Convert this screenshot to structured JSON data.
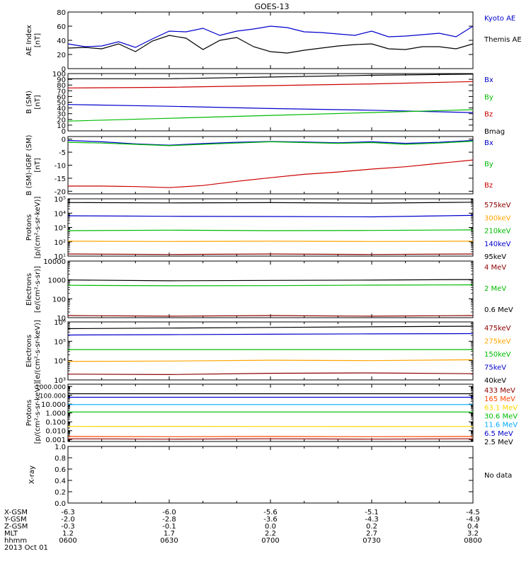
{
  "title": "GOES-13",
  "footer": {
    "rows": [
      {
        "label": "X-GSM",
        "values": [
          "-6.3",
          "-6.0",
          "-5.6",
          "-5.1",
          "-4.5"
        ]
      },
      {
        "label": "Y-GSM",
        "values": [
          "-2.0",
          "-2.8",
          "-3.6",
          "-4.3",
          "-4.9"
        ]
      },
      {
        "label": "Z-GSM",
        "values": [
          "-0.3",
          "-0.1",
          "0.0",
          "0.2",
          "0.4"
        ]
      },
      {
        "label": "MLT",
        "values": [
          "1.2",
          "1.7",
          "2.2",
          "2.7",
          "3.2"
        ]
      },
      {
        "label": "hhmm",
        "values": [
          "0600",
          "0630",
          "0700",
          "0730",
          "0800"
        ]
      }
    ],
    "date": "2013 Oct 01"
  },
  "chart_data": [
    {
      "type": "line",
      "ylabel": [
        "AE Index",
        "[nT]"
      ],
      "ylim": [
        0,
        80
      ],
      "yticks": [
        "0",
        "20",
        "40",
        "60",
        "80"
      ],
      "x": [
        0,
        5,
        10,
        15,
        20,
        25,
        30,
        35,
        40,
        45,
        50,
        55,
        60,
        65,
        70,
        75,
        80,
        85,
        90,
        95,
        100,
        105,
        110,
        115,
        120
      ],
      "series": [
        {
          "name": "Kyoto AE",
          "color": "#0000cc",
          "values": [
            35,
            31,
            32,
            38,
            30,
            42,
            53,
            52,
            57,
            47,
            53,
            56,
            60,
            58,
            52,
            51,
            49,
            47,
            53,
            45,
            46,
            48,
            50,
            45,
            60
          ]
        },
        {
          "name": "Themis AE",
          "color": "#000000",
          "values": [
            29,
            30,
            28,
            35,
            24,
            39,
            47,
            43,
            27,
            40,
            44,
            31,
            24,
            22,
            26,
            29,
            32,
            34,
            35,
            28,
            27,
            31,
            31,
            28,
            35
          ]
        }
      ]
    },
    {
      "type": "line",
      "ylabel": [
        "B (SM)",
        "[nT]"
      ],
      "ylim": [
        0,
        100
      ],
      "yticks": [
        "0",
        "10",
        "20",
        "30",
        "40",
        "50",
        "60",
        "70",
        "80",
        "90",
        "100"
      ],
      "x": [
        0,
        30,
        60,
        90,
        120
      ],
      "series": [
        {
          "name": "Bx",
          "color": "#0000cc",
          "values": [
            46,
            43,
            39,
            36,
            32
          ]
        },
        {
          "name": "By",
          "color": "#00bb00",
          "values": [
            17,
            22,
            27,
            32,
            37
          ]
        },
        {
          "name": "Bz",
          "color": "#cc0000",
          "values": [
            75,
            76,
            79,
            82,
            86
          ]
        },
        {
          "name": "Bmag",
          "color": "#000000",
          "values": [
            91,
            91,
            94,
            97,
            99
          ]
        }
      ]
    },
    {
      "type": "line",
      "ylabel": [
        "B (SM)-IGRF (SM)",
        "[nT]"
      ],
      "ylim": [
        -21,
        1
      ],
      "yticks": [
        "-20",
        "-15",
        "-10",
        "-5",
        "0"
      ],
      "ytickvalues": [
        -20,
        -15,
        -10,
        -5,
        0
      ],
      "x": [
        0,
        10,
        20,
        30,
        40,
        50,
        60,
        70,
        80,
        90,
        100,
        110,
        120
      ],
      "series": [
        {
          "name": "Bx",
          "color": "#0000cc",
          "values": [
            -0.5,
            -1.0,
            -1.8,
            -2.3,
            -1.7,
            -1.2,
            -0.9,
            -1.1,
            -1.4,
            -1.0,
            -1.6,
            -1.2,
            -0.5
          ]
        },
        {
          "name": "By",
          "color": "#00bb00",
          "values": [
            -1.2,
            -1.5,
            -2.0,
            -2.5,
            -2.0,
            -1.5,
            -1.0,
            -1.3,
            -1.6,
            -1.3,
            -2.0,
            -1.5,
            -0.8
          ]
        },
        {
          "name": "Bz",
          "color": "#cc0000",
          "values": [
            -18.0,
            -18.0,
            -18.2,
            -18.6,
            -17.8,
            -16.2,
            -14.8,
            -13.5,
            -12.6,
            -11.5,
            -10.6,
            -9.3,
            -8.0
          ]
        }
      ]
    },
    {
      "type": "line",
      "scale": "log",
      "ylabel": [
        "Protons",
        "[p/(cm²-s-sr-keV)]"
      ],
      "ylim": [
        10,
        100000
      ],
      "yticks": [
        "10¹",
        "10²",
        "10³",
        "10⁴",
        "10⁵"
      ],
      "ytickvalues": [
        10,
        100,
        1000,
        10000,
        100000
      ],
      "x": [
        0,
        30,
        60,
        90,
        120
      ],
      "series": [
        {
          "name": "575keV",
          "color": "#8b0000",
          "values": [
            14,
            13,
            14,
            13,
            14
          ]
        },
        {
          "name": "300keV",
          "color": "#ffa500",
          "values": [
            110,
            105,
            110,
            105,
            110
          ]
        },
        {
          "name": "210keV",
          "color": "#00bb00",
          "values": [
            600,
            650,
            600,
            620,
            680
          ]
        },
        {
          "name": "140keV",
          "color": "#0000cc",
          "values": [
            6500,
            6000,
            5800,
            5500,
            7000
          ]
        },
        {
          "name": "95keV",
          "color": "#000000",
          "values": [
            55000,
            52000,
            54000,
            50000,
            58000
          ]
        }
      ]
    },
    {
      "type": "line",
      "scale": "log",
      "ylabel": [
        "Electrons",
        "[e/(cm²-s-sr)]"
      ],
      "ylim": [
        10,
        10000
      ],
      "yticks": [
        "10",
        "100",
        "1000",
        "10000"
      ],
      "ytickvalues": [
        10,
        100,
        1000,
        10000
      ],
      "x": [
        0,
        30,
        60,
        90,
        120
      ],
      "series": [
        {
          "name": "4 MeV",
          "color": "#8b0000",
          "values": [
            13,
            12,
            13,
            12,
            13
          ]
        },
        {
          "name": "2 MeV",
          "color": "#00bb00",
          "values": [
            520,
            490,
            500,
            530,
            550
          ]
        },
        {
          "name": "0.6 MeV",
          "color": "#000000",
          "values": [
            1000,
            900,
            950,
            980,
            1050
          ]
        }
      ]
    },
    {
      "type": "line",
      "scale": "log",
      "ylabel": [
        "Electrons",
        "[e/(cm²-s-sr-keV)]"
      ],
      "ylim": [
        1000,
        1000000
      ],
      "yticks": [
        "10³",
        "10⁴",
        "10⁵",
        "10⁶"
      ],
      "ytickvalues": [
        1000,
        10000,
        100000,
        1000000
      ],
      "x": [
        0,
        30,
        60,
        90,
        120
      ],
      "series": [
        {
          "name": "475keV",
          "color": "#8b0000",
          "values": [
            2000,
            1900,
            2200,
            2300,
            2100
          ]
        },
        {
          "name": "275keV",
          "color": "#ffa500",
          "values": [
            9000,
            9500,
            10500,
            10000,
            11000
          ]
        },
        {
          "name": "150keV",
          "color": "#00bb00",
          "values": [
            37000,
            37000,
            37000,
            37000,
            37000
          ]
        },
        {
          "name": "75keV",
          "color": "#0000cc",
          "values": [
            210000,
            220000,
            230000,
            240000,
            250000
          ]
        },
        {
          "name": "40keV",
          "color": "#000000",
          "values": [
            450000,
            480000,
            520000,
            560000,
            600000
          ]
        }
      ]
    },
    {
      "type": "line",
      "scale": "log",
      "ylabel": [
        "Protons",
        "[p/(cm²-s-sr-keV)]"
      ],
      "ylim": [
        0.0006,
        1800
      ],
      "yticks": [
        "0.001",
        "0.010",
        "0.100",
        "1.000",
        "10.000",
        "100.000",
        "1000.000"
      ],
      "ytickvalues": [
        0.001,
        0.01,
        0.1,
        1,
        10,
        100,
        1000
      ],
      "x": [
        0,
        30,
        60,
        90,
        120
      ],
      "series": [
        {
          "name": "433 MeV",
          "color": "#8b0000",
          "values": [
            0.0012,
            0.0011,
            0.0012,
            0.0011,
            0.0012
          ]
        },
        {
          "name": "165 MeV",
          "color": "#ff4500",
          "values": [
            0.0022,
            0.0021,
            0.0022,
            0.0021,
            0.0022
          ]
        },
        {
          "name": "63.1 MeV",
          "color": "#ffd700",
          "values": [
            0.03,
            0.031,
            0.03,
            0.029,
            0.03
          ]
        },
        {
          "name": "30.6 MeV",
          "color": "#00bb00",
          "values": [
            1.3,
            1.3,
            1.3,
            1.3,
            1.3
          ]
        },
        {
          "name": "11.6 MeV",
          "color": "#00aaff",
          "values": [
            9,
            9,
            9,
            9,
            9
          ]
        },
        {
          "name": "6.5 MeV",
          "color": "#0000cc",
          "values": [
            60,
            60,
            60,
            60,
            60
          ]
        },
        {
          "name": "2.5 MeV",
          "color": "#000000",
          "values": [
            150,
            150,
            150,
            150,
            150
          ]
        }
      ]
    },
    {
      "type": "line",
      "ylabel": [
        "X-ray"
      ],
      "ylim": [
        0,
        1
      ],
      "yticks": [
        "0.0",
        "0.2",
        "0.4",
        "0.6",
        "0.8",
        "1.0"
      ],
      "series": [],
      "note": "No data"
    }
  ]
}
